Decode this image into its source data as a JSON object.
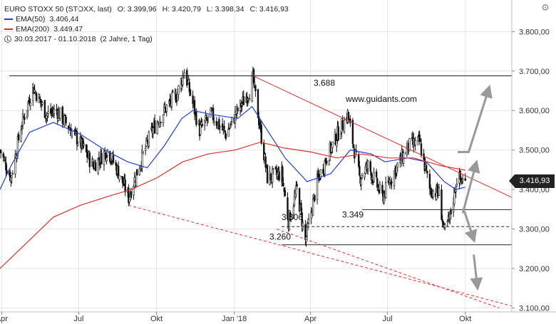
{
  "header": {
    "instrument": "EURO STOXX 50 (STOXX, last)",
    "open": "O: 3.399,96",
    "high": "H: 3.420,79",
    "low": "L: 3.398,34",
    "close": "C: 3.416,93",
    "ema50_label": "EMA(50)",
    "ema50_value": "3.406,44",
    "ema200_label": "EMA(200)",
    "ema200_value": "3.449,47",
    "range": "30.03.2017 - 01.10.2018",
    "period": "(2 Jahre, 1 Tag)"
  },
  "last_price_tag": "3.416,93",
  "watermark": "www.guidants.com",
  "colors": {
    "candles": "#111111",
    "ema50": "#1f3fd6",
    "ema200": "#e0302a",
    "trendline": "#e0302a",
    "support": "#222222",
    "arrows": "#999999",
    "grid": "#e6e6e6"
  },
  "chart_data": {
    "type": "candlestick",
    "title": "EURO STOXX 50 (STOXX, last)",
    "x_tick_labels": [
      "Apr",
      "Jul",
      "Okt",
      "Jan '18",
      "Apr",
      "Jul",
      "Okt"
    ],
    "y_tick_labels": [
      "3.100,00",
      "3.200,00",
      "3.300,00",
      "3.400,00",
      "3.500,00",
      "3.600,00",
      "3.700,00",
      "3.800,00"
    ],
    "y_ticks": [
      3100,
      3200,
      3300,
      3400,
      3500,
      3600,
      3700,
      3800
    ],
    "ylim": [
      3090,
      3880
    ],
    "xlim": [
      "2017-03-30",
      "2018-11-25"
    ],
    "grid": true,
    "price_points": [
      [
        "2017-03-30",
        3500
      ],
      [
        "2017-04-12",
        3430
      ],
      [
        "2017-04-24",
        3560
      ],
      [
        "2017-05-08",
        3660
      ],
      [
        "2017-05-24",
        3590
      ],
      [
        "2017-06-05",
        3600
      ],
      [
        "2017-06-19",
        3560
      ],
      [
        "2017-07-05",
        3510
      ],
      [
        "2017-07-18",
        3460
      ],
      [
        "2017-08-04",
        3500
      ],
      [
        "2017-08-18",
        3440
      ],
      [
        "2017-08-29",
        3380
      ],
      [
        "2017-09-12",
        3470
      ],
      [
        "2017-09-26",
        3550
      ],
      [
        "2017-10-10",
        3600
      ],
      [
        "2017-10-25",
        3640
      ],
      [
        "2017-11-03",
        3700
      ],
      [
        "2017-11-21",
        3550
      ],
      [
        "2017-12-05",
        3590
      ],
      [
        "2017-12-22",
        3540
      ],
      [
        "2018-01-05",
        3600
      ],
      [
        "2018-01-19",
        3650
      ],
      [
        "2018-01-23",
        3680
      ],
      [
        "2018-02-09",
        3430
      ],
      [
        "2018-02-26",
        3440
      ],
      [
        "2018-03-06",
        3320
      ],
      [
        "2018-03-16",
        3400
      ],
      [
        "2018-03-26",
        3270
      ],
      [
        "2018-04-09",
        3420
      ],
      [
        "2018-04-20",
        3480
      ],
      [
        "2018-05-03",
        3540
      ],
      [
        "2018-05-15",
        3590
      ],
      [
        "2018-05-29",
        3430
      ],
      [
        "2018-06-08",
        3460
      ],
      [
        "2018-06-25",
        3380
      ],
      [
        "2018-07-10",
        3450
      ],
      [
        "2018-07-26",
        3510
      ],
      [
        "2018-08-08",
        3520
      ],
      [
        "2018-08-20",
        3400
      ],
      [
        "2018-08-31",
        3390
      ],
      [
        "2018-09-06",
        3290
      ],
      [
        "2018-09-13",
        3330
      ],
      [
        "2018-09-21",
        3430
      ],
      [
        "2018-10-01",
        3417
      ]
    ],
    "series": [
      {
        "name": "EMA(50)",
        "points": [
          [
            "2017-03-30",
            3400
          ],
          [
            "2017-04-12",
            3460
          ],
          [
            "2017-05-04",
            3545
          ],
          [
            "2017-06-01",
            3570
          ],
          [
            "2017-07-03",
            3540
          ],
          [
            "2017-08-01",
            3500
          ],
          [
            "2017-08-28",
            3470
          ],
          [
            "2017-09-20",
            3455
          ],
          [
            "2017-10-10",
            3510
          ],
          [
            "2017-10-31",
            3580
          ],
          [
            "2017-11-13",
            3600
          ],
          [
            "2017-12-05",
            3590
          ],
          [
            "2018-01-05",
            3580
          ],
          [
            "2018-01-22",
            3610
          ],
          [
            "2018-02-12",
            3540
          ],
          [
            "2018-03-02",
            3480
          ],
          [
            "2018-03-28",
            3420
          ],
          [
            "2018-04-25",
            3440
          ],
          [
            "2018-05-18",
            3500
          ],
          [
            "2018-06-12",
            3490
          ],
          [
            "2018-06-28",
            3470
          ],
          [
            "2018-07-25",
            3480
          ],
          [
            "2018-08-16",
            3470
          ],
          [
            "2018-09-06",
            3420
          ],
          [
            "2018-09-20",
            3400
          ],
          [
            "2018-10-01",
            3406
          ]
        ]
      },
      {
        "name": "EMA(200)",
        "points": [
          [
            "2017-03-30",
            3200
          ],
          [
            "2017-05-03",
            3270
          ],
          [
            "2017-06-01",
            3330
          ],
          [
            "2017-07-03",
            3360
          ],
          [
            "2017-08-01",
            3380
          ],
          [
            "2017-09-01",
            3400
          ],
          [
            "2017-10-02",
            3430
          ],
          [
            "2017-11-01",
            3470
          ],
          [
            "2017-12-01",
            3490
          ],
          [
            "2018-01-02",
            3500
          ],
          [
            "2018-02-01",
            3520
          ],
          [
            "2018-03-01",
            3505
          ],
          [
            "2018-04-02",
            3495
          ],
          [
            "2018-05-02",
            3480
          ],
          [
            "2018-06-01",
            3490
          ],
          [
            "2018-07-02",
            3480
          ],
          [
            "2018-08-01",
            3480
          ],
          [
            "2018-09-03",
            3460
          ],
          [
            "2018-10-01",
            3449
          ]
        ]
      }
    ],
    "horizontal_lines": [
      {
        "label": "3.688",
        "y": 3688,
        "x": [
          "2017-04-10",
          "2018-11-25"
        ],
        "style": "solid"
      },
      {
        "label": "3.349",
        "y": 3349,
        "x": [
          "2018-06-01",
          "2018-11-25"
        ],
        "style": "solid"
      },
      {
        "label": "3.306",
        "y": 3306,
        "x": [
          "2018-02-26",
          "2018-11-25"
        ],
        "style": "dashed"
      },
      {
        "label": "3.260",
        "y": 3260,
        "x": [
          "2018-02-26",
          "2018-11-25"
        ],
        "style": "solid"
      }
    ],
    "trendlines": [
      {
        "from": [
          "2018-01-23",
          3688
        ],
        "to": [
          "2018-11-25",
          3380
        ],
        "style": "solid"
      },
      {
        "from": [
          "2017-08-29",
          3360
        ],
        "to": [
          "2018-11-25",
          3105
        ],
        "style": "dashed"
      },
      {
        "from": [
          "2018-02-20",
          3300
        ],
        "to": [
          "2018-11-10",
          3100
        ],
        "style": "dashed"
      }
    ],
    "arrows": [
      {
        "path": [
          [
            "2018-09-22",
            3495
          ],
          [
            "2018-10-05",
            3495
          ],
          [
            "2018-10-28",
            3650
          ]
        ]
      },
      {
        "path": [
          [
            "2018-09-28",
            3340
          ],
          [
            "2018-10-13",
            3460
          ]
        ]
      },
      {
        "path": [
          [
            "2018-09-30",
            3345
          ],
          [
            "2018-10-10",
            3280
          ]
        ]
      },
      {
        "path": [
          [
            "2018-10-11",
            3235
          ],
          [
            "2018-10-15",
            3160
          ]
        ]
      }
    ]
  }
}
